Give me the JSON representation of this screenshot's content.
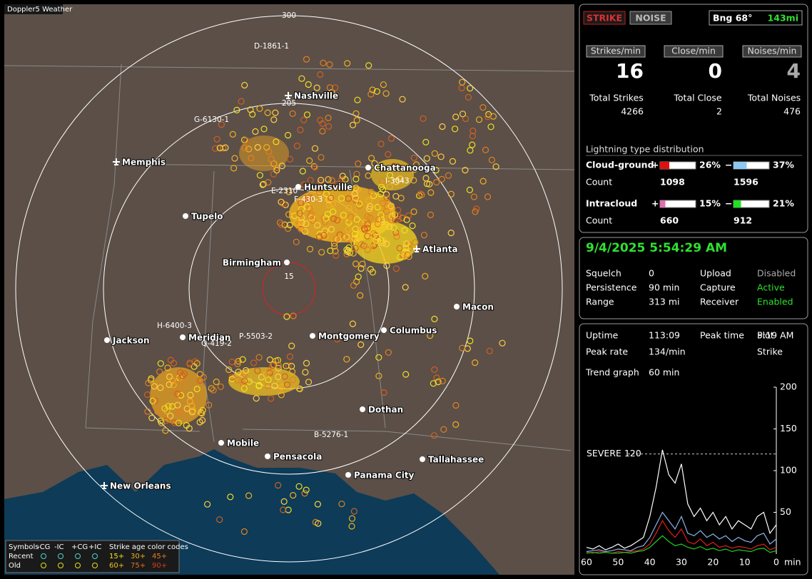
{
  "window": {
    "title": "Doppler5 Weather"
  },
  "controls": {
    "strike": "STRIKE",
    "noise": "NOISE",
    "bearing": "Bng 68°",
    "distance": "143mi"
  },
  "rates": [
    {
      "label": "Strikes/min",
      "value": 16
    },
    {
      "label": "Close/min",
      "value": 0
    },
    {
      "label": "Noises/min",
      "value": 4
    }
  ],
  "totals": [
    {
      "label": "Total Strikes",
      "value": 4266
    },
    {
      "label": "Total Close",
      "value": 2
    },
    {
      "label": "Total Noises",
      "value": 476
    }
  ],
  "distribution": {
    "title": "Lightning type distribution",
    "rows": [
      {
        "name": "Cloud-ground",
        "plus_sign": "+",
        "plus": {
          "value": 26,
          "label": "26%"
        },
        "minus_sign": "−",
        "minus": {
          "value": 37,
          "label": "37%"
        },
        "count_label": "Count",
        "plus_count": 1098,
        "minus_count": 1596
      },
      {
        "name": "Intracloud",
        "plus_sign": "+",
        "plus": {
          "value": 15,
          "label": "15%"
        },
        "minus_sign": "−",
        "minus": {
          "value": 21,
          "label": "21%"
        },
        "count_label": "Count",
        "plus_count": 660,
        "minus_count": 912
      }
    ]
  },
  "status": {
    "datetime": "9/4/2025 5:54:29 AM",
    "items": [
      [
        "Squelch",
        "0",
        "Upload",
        "Disabled"
      ],
      [
        "Persistence",
        "90 min",
        "Capture",
        "Active"
      ],
      [
        "Range",
        "313 mi",
        "Receiver",
        "Enabled"
      ]
    ]
  },
  "stats": {
    "items": [
      [
        "Uptime",
        "113:09",
        "Peak time",
        "5:19 AM",
        "Plot"
      ],
      [
        "Peak rate",
        "134/min",
        "",
        "",
        "Strike"
      ]
    ],
    "trend_label": "Trend graph",
    "trend_span": "60 min"
  },
  "chart_data": {
    "type": "line",
    "x": [
      60,
      58,
      56,
      54,
      52,
      50,
      48,
      46,
      44,
      42,
      40,
      38,
      36,
      34,
      32,
      30,
      28,
      26,
      24,
      22,
      20,
      18,
      16,
      14,
      12,
      10,
      8,
      6,
      4,
      2,
      0
    ],
    "series": [
      {
        "color": "#ffffff",
        "values": [
          8,
          6,
          10,
          5,
          8,
          12,
          7,
          10,
          15,
          20,
          45,
          80,
          125,
          95,
          85,
          108,
          60,
          45,
          55,
          40,
          50,
          35,
          45,
          30,
          40,
          35,
          30,
          45,
          50,
          25,
          35
        ]
      },
      {
        "color": "#8ab4e8",
        "values": [
          3,
          4,
          5,
          3,
          4,
          6,
          5,
          4,
          8,
          10,
          20,
          35,
          50,
          40,
          30,
          45,
          25,
          22,
          28,
          20,
          24,
          18,
          22,
          15,
          20,
          16,
          14,
          22,
          25,
          12,
          18
        ]
      },
      {
        "color": "#e02020",
        "values": [
          2,
          1,
          3,
          2,
          1,
          3,
          2,
          3,
          4,
          6,
          12,
          25,
          40,
          28,
          20,
          30,
          15,
          12,
          18,
          10,
          14,
          8,
          10,
          7,
          9,
          8,
          6,
          10,
          12,
          5,
          8
        ]
      },
      {
        "color": "#20d020",
        "values": [
          1,
          2,
          1,
          2,
          1,
          1,
          2,
          1,
          3,
          4,
          8,
          15,
          22,
          15,
          10,
          12,
          8,
          6,
          9,
          5,
          7,
          4,
          6,
          3,
          5,
          4,
          3,
          6,
          7,
          2,
          4
        ]
      }
    ],
    "xlim": [
      60,
      0
    ],
    "xticks": [
      60,
      50,
      40,
      30,
      20,
      10,
      0
    ],
    "x_label": "min",
    "ylim": [
      0,
      200
    ],
    "yticks": [
      50,
      100,
      150,
      200
    ],
    "annotations": [
      {
        "text": "SEVERE 120",
        "value": 120
      }
    ]
  },
  "map": {
    "cities": [
      "Nashville",
      "Memphis",
      "Chattanooga",
      "Huntsville",
      "Tupelo",
      "Atlanta",
      "Birmingham",
      "Macon",
      "Jackson",
      "Meridian",
      "Montgomery",
      "Columbus",
      "Dothan",
      "Mobile",
      "Pensacola",
      "Tallahassee",
      "Panama City",
      "New Orleans"
    ],
    "rings": [
      "300",
      "205",
      "15"
    ],
    "storms": [
      "D-1861-1",
      "G-6130-1",
      "E-2310",
      "F-430-3",
      "I-3043",
      "H-6400-3",
      "Q-419-2",
      "P-5503-2",
      "B-5276-1"
    ]
  },
  "legend": {
    "symbols_label": "Symbols",
    "symbol_names": [
      "-CG",
      "-IC",
      "+CG",
      "+IC"
    ],
    "age_label": "Strike age color codes",
    "rows": [
      "Recent",
      "Old"
    ],
    "ages": [
      [
        "15+",
        "30+",
        "45+"
      ],
      [
        "60+",
        "75+",
        "90+"
      ]
    ]
  }
}
